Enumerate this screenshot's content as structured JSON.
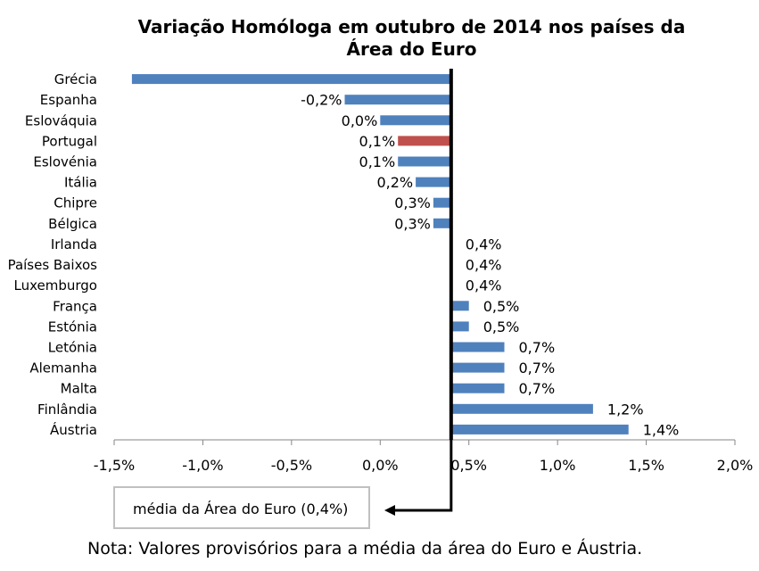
{
  "chart_data": {
    "type": "bar",
    "orientation": "horizontal",
    "title": [
      "Variação Homóloga em outubro de 2014 nos países da",
      "Área do Euro"
    ],
    "categories": [
      "Grécia",
      "Espanha",
      "Eslováquia",
      "Portugal",
      "Eslovénia",
      "Itália",
      "Chipre",
      "Bélgica",
      "Irlanda",
      "Países Baixos",
      "Luxemburgo",
      "França",
      "Estónia",
      "Letónia",
      "Alemanha",
      "Malta",
      "Finlândia",
      "Áustria"
    ],
    "values": [
      -1.4,
      -0.2,
      0.0,
      0.1,
      0.1,
      0.2,
      0.3,
      0.3,
      0.4,
      0.4,
      0.4,
      0.5,
      0.5,
      0.7,
      0.7,
      0.7,
      1.2,
      1.4
    ],
    "data_labels": [
      "",
      "-0,2%",
      "0,0%",
      "0,1%",
      "0,1%",
      "0,2%",
      "0,3%",
      "0,3%",
      "0,4%",
      "0,4%",
      "0,4%",
      "0,5%",
      "0,5%",
      "0,7%",
      "0,7%",
      "0,7%",
      "1,2%",
      "1,4%"
    ],
    "highlight": "Portugal",
    "baseline": 0.4,
    "xlim": [
      -1.5,
      2.0
    ],
    "ticks": [
      -1.5,
      -1.0,
      -0.5,
      0.0,
      0.5,
      1.0,
      1.5,
      2.0
    ],
    "tick_labels": [
      "-1,5%",
      "-1,0%",
      "-0,5%",
      "0,0%",
      "0,5%",
      "1,0%",
      "1,5%",
      "2,0%"
    ],
    "colors": {
      "bar": "#4f81bd",
      "highlight": "#c0504d",
      "baseline": "#000000",
      "axis": "#868686"
    }
  },
  "legend": {
    "label": "média da Área  do Euro (0,4%)"
  },
  "note": "Nota: Valores provisórios para a média da área do Euro e Áustria."
}
